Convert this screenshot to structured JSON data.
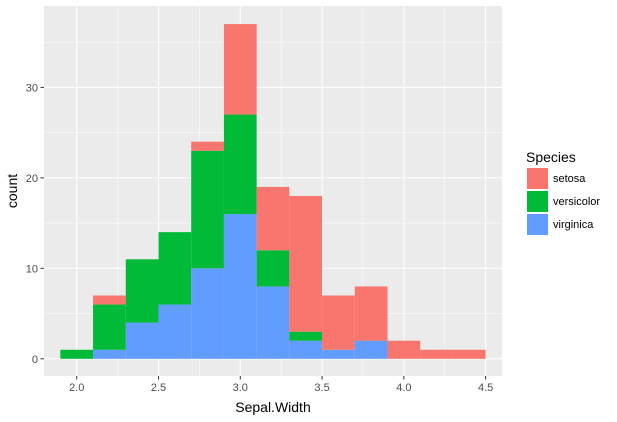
{
  "chart_data": {
    "type": "bar",
    "stacked": true,
    "xlabel": "Sepal.Width",
    "ylabel": "count",
    "xlim": [
      1.8,
      4.6
    ],
    "ylim": [
      -1.9,
      39
    ],
    "xticks": [
      2.0,
      2.5,
      3.0,
      3.5,
      4.0,
      4.5
    ],
    "xtick_labels": [
      "2.0",
      "2.5",
      "3.0",
      "3.5",
      "4.0",
      "4.5"
    ],
    "yticks": [
      0,
      10,
      20,
      30
    ],
    "ytick_labels": [
      "0",
      "10",
      "20",
      "30"
    ],
    "bin_width": 0.2,
    "bins_center": [
      2.0,
      2.2,
      2.4,
      2.6,
      2.8,
      3.0,
      3.2,
      3.4,
      3.6,
      3.8,
      4.0,
      4.2,
      4.4
    ],
    "series": [
      {
        "name": "virginica",
        "color": "#619CFF",
        "values": [
          0,
          1,
          4,
          6,
          10,
          16,
          8,
          2,
          1,
          2,
          0,
          0,
          0
        ]
      },
      {
        "name": "versicolor",
        "color": "#00BA38",
        "values": [
          1,
          5,
          7,
          8,
          13,
          11,
          4,
          1,
          0,
          0,
          0,
          0,
          0
        ]
      },
      {
        "name": "setosa",
        "color": "#F8766D",
        "values": [
          0,
          1,
          0,
          0,
          1,
          10,
          7,
          15,
          6,
          6,
          2,
          1,
          1
        ]
      }
    ],
    "grid": true,
    "legend": {
      "title": "Species",
      "position": "right",
      "entries": [
        {
          "label": "setosa",
          "color": "#F8766D"
        },
        {
          "label": "versicolor",
          "color": "#00BA38"
        },
        {
          "label": "virginica",
          "color": "#619CFF"
        }
      ]
    },
    "panel_background": "#EBEBEB",
    "grid_color": "#FFFFFF"
  }
}
